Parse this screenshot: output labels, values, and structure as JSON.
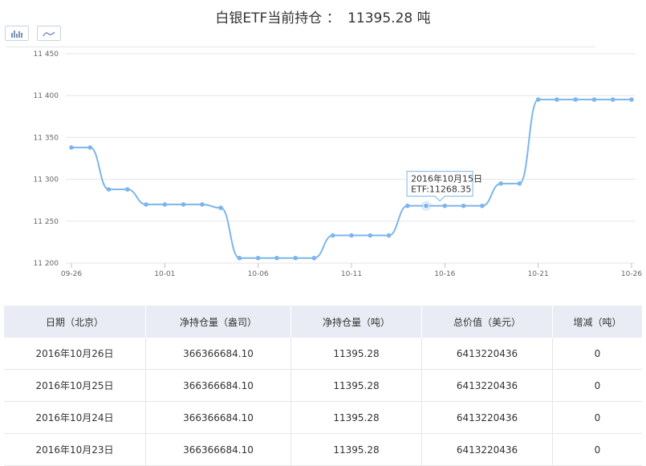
{
  "header": {
    "title": "白银ETF当前持仓",
    "separator": "：",
    "value": "11395.28 吨"
  },
  "toolbar": {
    "bar_view_icon": "bar-chart-icon",
    "line_view_icon": "line-chart-icon"
  },
  "colors": {
    "line": "#7cb5ec",
    "grid": "#e6e6e6",
    "table_header_bg": "#e9ecf4",
    "tooltip_border": "#7cb5ec"
  },
  "chart_data": {
    "type": "line",
    "x": [
      "09-26",
      "09-27",
      "09-28",
      "09-29",
      "09-30",
      "10-01",
      "10-02",
      "10-03",
      "10-04",
      "10-05",
      "10-06",
      "10-07",
      "10-08",
      "10-09",
      "10-10",
      "10-11",
      "10-12",
      "10-13",
      "10-14",
      "10-15",
      "10-16",
      "10-17",
      "10-18",
      "10-19",
      "10-20",
      "10-21",
      "10-22",
      "10-23",
      "10-24",
      "10-25",
      "10-26"
    ],
    "x_tick_labels": [
      "09-26",
      "10-01",
      "10-06",
      "10-11",
      "10-16",
      "10-21",
      "10-26"
    ],
    "series": [
      {
        "name": "ETF",
        "values": [
          11338,
          11338,
          11288,
          11288,
          11270,
          11270,
          11270,
          11270,
          11266,
          11206,
          11206,
          11206,
          11206,
          11206,
          11233,
          11233,
          11233,
          11233,
          11268.35,
          11268.35,
          11268.35,
          11268.35,
          11268.35,
          11295,
          11295,
          11395.28,
          11395.28,
          11395.28,
          11395.28,
          11395.28,
          11395.28
        ]
      }
    ],
    "ylim": [
      11200,
      11450
    ],
    "yticks": [
      11200,
      11250,
      11300,
      11350,
      11400,
      11450
    ],
    "ytick_labels": [
      "11 200",
      "11 250",
      "11 300",
      "11 350",
      "11 400",
      "11 450"
    ],
    "grid": true,
    "tooltip": {
      "index": 19,
      "date_label": "2016年10月15日",
      "value_label": "ETF:11268.35"
    }
  },
  "table": {
    "headers": [
      "日期（北京）",
      "净持仓量（盎司）",
      "净持仓量（吨）",
      "总价值（美元）",
      "增减（吨）"
    ],
    "rows": [
      [
        "2016年10月26日",
        "366366684.10",
        "11395.28",
        "6413220436",
        "0"
      ],
      [
        "2016年10月25日",
        "366366684.10",
        "11395.28",
        "6413220436",
        "0"
      ],
      [
        "2016年10月24日",
        "366366684.10",
        "11395.28",
        "6413220436",
        "0"
      ],
      [
        "2016年10月23日",
        "366366684.10",
        "11395.28",
        "6413220436",
        "0"
      ]
    ]
  }
}
